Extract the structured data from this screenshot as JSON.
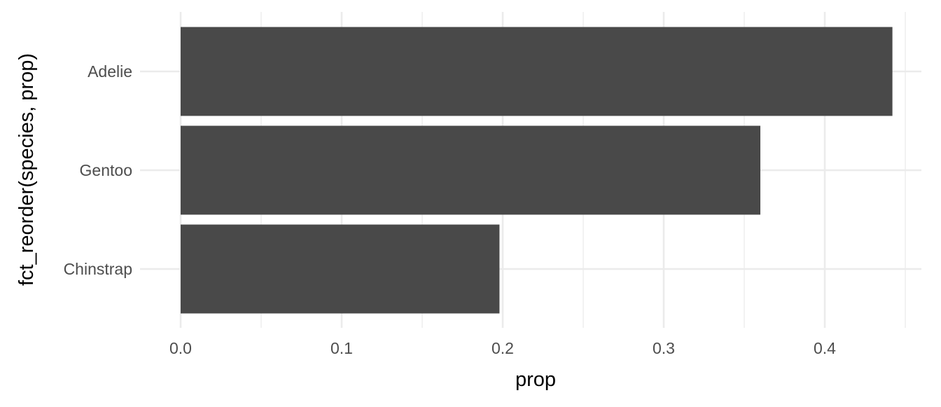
{
  "chart_data": {
    "type": "bar",
    "orientation": "horizontal",
    "categories": [
      "Adelie",
      "Gentoo",
      "Chinstrap"
    ],
    "values": [
      0.442,
      0.36,
      0.198
    ],
    "title": "",
    "xlabel": "prop",
    "ylabel": "fct_reorder(species, prop)",
    "xlim": [
      -0.022,
      0.46
    ],
    "xticks": [
      0.0,
      0.1,
      0.2,
      0.3,
      0.4
    ],
    "xtick_labels": [
      "0.0",
      "0.1",
      "0.2",
      "0.3",
      "0.4"
    ],
    "grid": true,
    "legend": "none",
    "bar_color": "#494949",
    "grid_color": "#ebebeb"
  }
}
